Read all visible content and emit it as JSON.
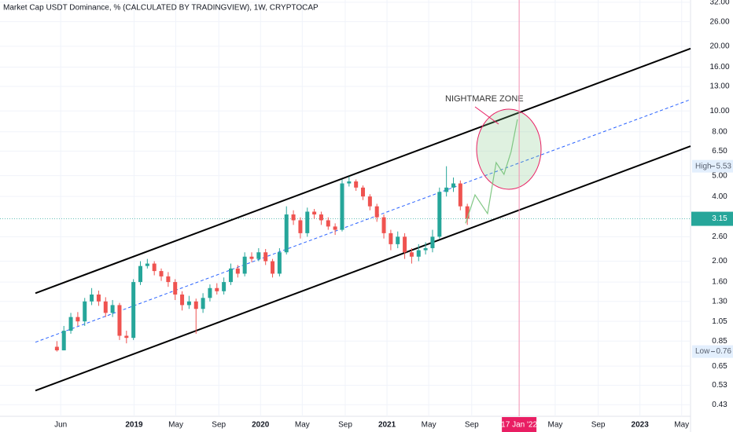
{
  "chart_data": {
    "type": "candlestick",
    "title": "Market Cap USDT Dominance, % (CALCULATED BY TRADINGVIEW), 1W, CRYPTOCAP",
    "log_scale": true,
    "grid": true,
    "xlim": [
      2017.94,
      2023.4
    ],
    "ylim": [
      0.38,
      32.8
    ],
    "xticks": [
      {
        "value": 2018.42,
        "label": "Jun"
      },
      2019,
      {
        "value": 2019.33,
        "label": "May"
      },
      {
        "value": 2019.67,
        "label": "Sep"
      },
      2020,
      {
        "value": 2020.33,
        "label": "May"
      },
      {
        "value": 2020.67,
        "label": "Sep"
      },
      2021,
      {
        "value": 2021.33,
        "label": "May"
      },
      {
        "value": 2021.67,
        "label": "Sep"
      },
      {
        "value": 2022.33,
        "label": "May"
      },
      {
        "value": 2022.67,
        "label": "Sep"
      },
      2023,
      {
        "value": 2023.33,
        "label": "May"
      }
    ],
    "yticks": [
      {
        "value": 32,
        "label": "32.00"
      },
      {
        "value": 26,
        "label": "26.00"
      },
      {
        "value": 20,
        "label": "20.00"
      },
      {
        "value": 16,
        "label": "16.00"
      },
      {
        "value": 13,
        "label": "13.00"
      },
      {
        "value": 10,
        "label": "10.00"
      },
      {
        "value": 8,
        "label": "8.00"
      },
      {
        "value": 6.5,
        "label": "6.50"
      },
      {
        "value": 5,
        "label": "5.00"
      },
      {
        "value": 4,
        "label": "4.00"
      },
      {
        "value": 2.6,
        "label": "2.60"
      },
      {
        "value": 2,
        "label": "2.00"
      },
      {
        "value": 1.6,
        "label": "1.60"
      },
      {
        "value": 1.3,
        "label": "1.30"
      },
      1.05,
      0.85,
      0.65,
      0.53,
      0.43
    ],
    "up_color": "#26a69a",
    "down_color": "#ef5350",
    "candles": {
      "x": [
        2018.39,
        2018.445,
        2018.5,
        2018.555,
        2018.61,
        2018.665,
        2018.72,
        2018.775,
        2018.83,
        2018.885,
        2018.94,
        2018.995,
        2019.05,
        2019.105,
        2019.16,
        2019.215,
        2019.27,
        2019.325,
        2019.38,
        2019.435,
        2019.49,
        2019.545,
        2019.6,
        2019.655,
        2019.71,
        2019.765,
        2019.82,
        2019.875,
        2019.93,
        2019.985,
        2020.04,
        2020.095,
        2020.15,
        2020.205,
        2020.26,
        2020.315,
        2020.37,
        2020.425,
        2020.48,
        2020.535,
        2020.59,
        2020.645,
        2020.7,
        2020.755,
        2020.81,
        2020.865,
        2020.92,
        2020.975,
        2021.03,
        2021.085,
        2021.14,
        2021.195,
        2021.25,
        2021.305,
        2021.36,
        2021.415,
        2021.47,
        2021.525,
        2021.58,
        2021.635
      ],
      "open": [
        0.8,
        0.77,
        0.95,
        1.1,
        1.05,
        1.3,
        1.4,
        1.3,
        1.15,
        1.25,
        0.9,
        0.88,
        1.6,
        1.9,
        1.95,
        1.8,
        1.7,
        1.6,
        1.4,
        1.25,
        1.3,
        1.2,
        1.35,
        1.5,
        1.45,
        1.6,
        1.85,
        1.75,
        2.1,
        2.05,
        2.2,
        2.0,
        1.75,
        2.2,
        3.3,
        3.1,
        2.7,
        3.4,
        3.3,
        3.1,
        2.9,
        2.8,
        4.6,
        4.7,
        4.4,
        4.0,
        3.6,
        3.2,
        2.7,
        2.4,
        2.6,
        2.2,
        2.1,
        2.25,
        2.3,
        2.6,
        4.2,
        4.4,
        4.6,
        3.6
      ],
      "high": [
        0.85,
        1.0,
        1.15,
        1.16,
        1.35,
        1.5,
        1.46,
        1.36,
        1.32,
        1.28,
        0.95,
        1.65,
        2.0,
        2.05,
        2.0,
        1.85,
        1.78,
        1.65,
        1.45,
        1.38,
        1.34,
        1.42,
        1.56,
        1.58,
        1.68,
        1.95,
        1.92,
        2.2,
        2.2,
        2.3,
        2.28,
        2.05,
        2.3,
        3.6,
        3.45,
        3.2,
        3.55,
        3.5,
        3.4,
        3.2,
        3.0,
        4.8,
        4.95,
        4.8,
        4.5,
        4.1,
        3.7,
        3.3,
        2.8,
        2.75,
        2.7,
        2.3,
        2.4,
        2.45,
        2.8,
        4.4,
        5.53,
        4.9,
        4.75,
        3.7
      ],
      "low": [
        0.76,
        0.77,
        0.92,
        1.0,
        1.0,
        1.25,
        1.24,
        1.1,
        1.1,
        0.86,
        0.83,
        0.86,
        1.55,
        1.85,
        1.72,
        1.62,
        1.52,
        1.32,
        1.18,
        1.2,
        0.92,
        1.15,
        1.3,
        1.4,
        1.4,
        1.55,
        1.68,
        1.7,
        1.98,
        2.0,
        1.92,
        1.68,
        1.7,
        2.15,
        2.95,
        2.55,
        2.6,
        3.15,
        2.95,
        2.8,
        2.65,
        2.75,
        4.45,
        4.25,
        3.85,
        3.45,
        3.05,
        2.55,
        2.25,
        2.3,
        2.05,
        1.95,
        2.0,
        2.15,
        2.2,
        2.55,
        4.0,
        4.2,
        3.45,
        2.95
      ],
      "close": [
        0.77,
        0.95,
        1.1,
        1.05,
        1.3,
        1.4,
        1.3,
        1.15,
        1.25,
        0.9,
        0.88,
        1.6,
        1.9,
        1.95,
        1.8,
        1.7,
        1.6,
        1.4,
        1.25,
        1.3,
        1.2,
        1.35,
        1.5,
        1.45,
        1.6,
        1.85,
        1.75,
        2.1,
        2.05,
        2.2,
        2.0,
        1.75,
        2.2,
        3.3,
        3.1,
        2.7,
        3.4,
        3.3,
        3.1,
        2.9,
        2.8,
        4.6,
        4.7,
        4.4,
        4.0,
        3.6,
        3.2,
        2.7,
        2.4,
        2.6,
        2.2,
        2.1,
        2.25,
        2.3,
        2.6,
        4.2,
        4.4,
        4.6,
        3.6,
        3.15
      ]
    },
    "trendlines": [
      {
        "x": [
          2018.22,
          2023.4
        ],
        "y": [
          1.42,
          19.5
        ],
        "color": "#000000"
      },
      {
        "x": [
          2018.22,
          2023.4
        ],
        "y": [
          0.5,
          6.86
        ],
        "color": "#000000"
      },
      {
        "x": [
          2018.22,
          2023.4
        ],
        "y": [
          0.84,
          11.3
        ],
        "color": "#2962ff",
        "dashed": true
      }
    ],
    "projection": {
      "x": [
        2021.621,
        2021.696,
        2021.795,
        2021.863,
        2021.925,
        2021.981,
        2022.031
      ],
      "y": [
        3.0,
        4.07,
        3.33,
        5.75,
        5.07,
        6.46,
        9.13
      ],
      "color": "#81c784"
    },
    "annotation": "NIGHTMARE ZONE",
    "marker": {
      "value": 2022.045,
      "label": "17 Jan '22"
    },
    "last_price": {
      "value": 3.15,
      "color": "#26a69a"
    },
    "high": {
      "label": "High",
      "value": 5.53
    },
    "low": {
      "label": "Low",
      "value": 0.76
    }
  }
}
